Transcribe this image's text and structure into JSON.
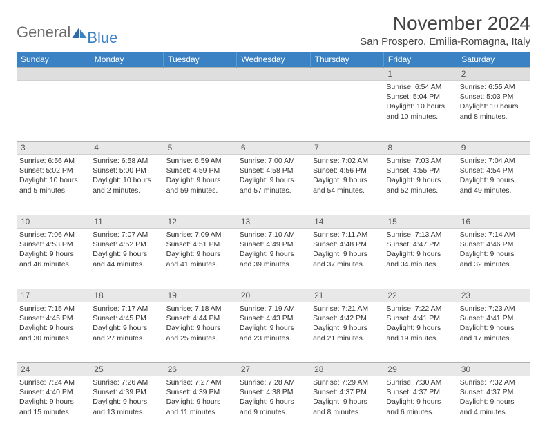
{
  "logo": {
    "part1": "General",
    "part2": "Blue"
  },
  "title": "November 2024",
  "location": "San Prospero, Emilia-Romagna, Italy",
  "colors": {
    "header_bg": "#3b82c4",
    "header_text": "#ffffff",
    "daynum_bg": "#e8e8e8",
    "text": "#333333",
    "logo_gray": "#6b6b6b",
    "logo_blue": "#3b82c4"
  },
  "day_headers": [
    "Sunday",
    "Monday",
    "Tuesday",
    "Wednesday",
    "Thursday",
    "Friday",
    "Saturday"
  ],
  "weeks": [
    {
      "nums": [
        "",
        "",
        "",
        "",
        "",
        "1",
        "2"
      ],
      "cells": [
        null,
        null,
        null,
        null,
        null,
        {
          "sunrise": "6:54 AM",
          "sunset": "5:04 PM",
          "daylight": "10 hours and 10 minutes."
        },
        {
          "sunrise": "6:55 AM",
          "sunset": "5:03 PM",
          "daylight": "10 hours and 8 minutes."
        }
      ]
    },
    {
      "nums": [
        "3",
        "4",
        "5",
        "6",
        "7",
        "8",
        "9"
      ],
      "cells": [
        {
          "sunrise": "6:56 AM",
          "sunset": "5:02 PM",
          "daylight": "10 hours and 5 minutes."
        },
        {
          "sunrise": "6:58 AM",
          "sunset": "5:00 PM",
          "daylight": "10 hours and 2 minutes."
        },
        {
          "sunrise": "6:59 AM",
          "sunset": "4:59 PM",
          "daylight": "9 hours and 59 minutes."
        },
        {
          "sunrise": "7:00 AM",
          "sunset": "4:58 PM",
          "daylight": "9 hours and 57 minutes."
        },
        {
          "sunrise": "7:02 AM",
          "sunset": "4:56 PM",
          "daylight": "9 hours and 54 minutes."
        },
        {
          "sunrise": "7:03 AM",
          "sunset": "4:55 PM",
          "daylight": "9 hours and 52 minutes."
        },
        {
          "sunrise": "7:04 AM",
          "sunset": "4:54 PM",
          "daylight": "9 hours and 49 minutes."
        }
      ]
    },
    {
      "nums": [
        "10",
        "11",
        "12",
        "13",
        "14",
        "15",
        "16"
      ],
      "cells": [
        {
          "sunrise": "7:06 AM",
          "sunset": "4:53 PM",
          "daylight": "9 hours and 46 minutes."
        },
        {
          "sunrise": "7:07 AM",
          "sunset": "4:52 PM",
          "daylight": "9 hours and 44 minutes."
        },
        {
          "sunrise": "7:09 AM",
          "sunset": "4:51 PM",
          "daylight": "9 hours and 41 minutes."
        },
        {
          "sunrise": "7:10 AM",
          "sunset": "4:49 PM",
          "daylight": "9 hours and 39 minutes."
        },
        {
          "sunrise": "7:11 AM",
          "sunset": "4:48 PM",
          "daylight": "9 hours and 37 minutes."
        },
        {
          "sunrise": "7:13 AM",
          "sunset": "4:47 PM",
          "daylight": "9 hours and 34 minutes."
        },
        {
          "sunrise": "7:14 AM",
          "sunset": "4:46 PM",
          "daylight": "9 hours and 32 minutes."
        }
      ]
    },
    {
      "nums": [
        "17",
        "18",
        "19",
        "20",
        "21",
        "22",
        "23"
      ],
      "cells": [
        {
          "sunrise": "7:15 AM",
          "sunset": "4:45 PM",
          "daylight": "9 hours and 30 minutes."
        },
        {
          "sunrise": "7:17 AM",
          "sunset": "4:45 PM",
          "daylight": "9 hours and 27 minutes."
        },
        {
          "sunrise": "7:18 AM",
          "sunset": "4:44 PM",
          "daylight": "9 hours and 25 minutes."
        },
        {
          "sunrise": "7:19 AM",
          "sunset": "4:43 PM",
          "daylight": "9 hours and 23 minutes."
        },
        {
          "sunrise": "7:21 AM",
          "sunset": "4:42 PM",
          "daylight": "9 hours and 21 minutes."
        },
        {
          "sunrise": "7:22 AM",
          "sunset": "4:41 PM",
          "daylight": "9 hours and 19 minutes."
        },
        {
          "sunrise": "7:23 AM",
          "sunset": "4:41 PM",
          "daylight": "9 hours and 17 minutes."
        }
      ]
    },
    {
      "nums": [
        "24",
        "25",
        "26",
        "27",
        "28",
        "29",
        "30"
      ],
      "cells": [
        {
          "sunrise": "7:24 AM",
          "sunset": "4:40 PM",
          "daylight": "9 hours and 15 minutes."
        },
        {
          "sunrise": "7:26 AM",
          "sunset": "4:39 PM",
          "daylight": "9 hours and 13 minutes."
        },
        {
          "sunrise": "7:27 AM",
          "sunset": "4:39 PM",
          "daylight": "9 hours and 11 minutes."
        },
        {
          "sunrise": "7:28 AM",
          "sunset": "4:38 PM",
          "daylight": "9 hours and 9 minutes."
        },
        {
          "sunrise": "7:29 AM",
          "sunset": "4:37 PM",
          "daylight": "9 hours and 8 minutes."
        },
        {
          "sunrise": "7:30 AM",
          "sunset": "4:37 PM",
          "daylight": "9 hours and 6 minutes."
        },
        {
          "sunrise": "7:32 AM",
          "sunset": "4:37 PM",
          "daylight": "9 hours and 4 minutes."
        }
      ]
    }
  ],
  "labels": {
    "sunrise": "Sunrise: ",
    "sunset": "Sunset: ",
    "daylight": "Daylight: "
  }
}
